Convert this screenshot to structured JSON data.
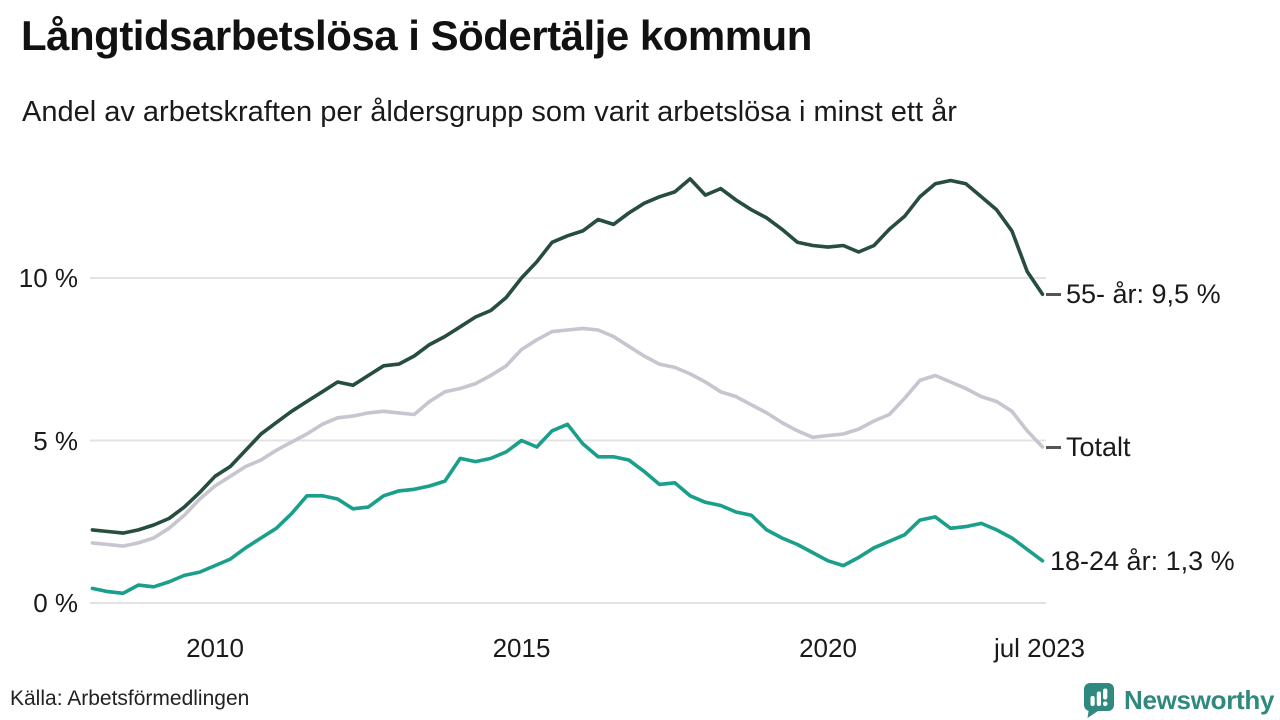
{
  "header": {
    "title": "Långtidsarbetslösa i Södertälje kommun",
    "subtitle": "Andel av arbetskraften per åldersgrupp som varit arbetslösa i minst ett år"
  },
  "footer": {
    "source": "Källa: Arbetsförmedlingen",
    "brand": "Newsworthy"
  },
  "colors": {
    "age55": "#264d3f",
    "total": "#c7c5cf",
    "age1824": "#1a9f8b",
    "grid": "#e3e3e3",
    "annotation_dash": "#555555",
    "brand": "#30897f",
    "text": "#1a1a1a"
  },
  "chart_data": {
    "type": "line",
    "title": "Långtidsarbetslösa i Södertälje kommun",
    "subtitle": "Andel av arbetskraften per åldersgrupp som varit arbetslösa i minst ett år",
    "source": "Källa: Arbetsförmedlingen",
    "xlabel": "",
    "ylabel": "",
    "grid": "horizontal",
    "legend_position": "right-edge-annotations",
    "x_unit": "year",
    "x_start": 2008.0,
    "x_step": 0.25,
    "xlim": [
      2008.0,
      2023.58
    ],
    "ylim": [
      0,
      13.3
    ],
    "y_ticks": [
      {
        "value": 0,
        "label": "0 %"
      },
      {
        "value": 5,
        "label": "5 %"
      },
      {
        "value": 10,
        "label": "10 %"
      }
    ],
    "x_ticks": [
      {
        "value": 2010,
        "label": "2010"
      },
      {
        "value": 2015,
        "label": "2015"
      },
      {
        "value": 2020,
        "label": "2020"
      },
      {
        "value": 2023.45,
        "label": "jul 2023"
      }
    ],
    "series": [
      {
        "name": "55- år",
        "color_key": "age55",
        "end_label": "55- år: 9,5 %",
        "end_value": 9.5,
        "dash": true,
        "z": 1,
        "values": [
          2.25,
          2.2,
          2.15,
          2.25,
          2.4,
          2.6,
          2.95,
          3.4,
          3.9,
          4.2,
          4.7,
          5.2,
          5.55,
          5.9,
          6.2,
          6.5,
          6.8,
          6.7,
          7.0,
          7.3,
          7.35,
          7.6,
          7.95,
          8.2,
          8.5,
          8.8,
          9.0,
          9.4,
          10.0,
          10.5,
          11.1,
          11.3,
          11.45,
          11.8,
          11.65,
          12.0,
          12.3,
          12.5,
          12.65,
          13.05,
          12.55,
          12.75,
          12.4,
          12.1,
          11.85,
          11.5,
          11.1,
          11.0,
          10.95,
          11.0,
          10.8,
          11.0,
          11.5,
          11.9,
          12.5,
          12.9,
          13.0,
          12.9,
          12.5,
          12.1,
          11.45,
          10.2,
          9.5
        ]
      },
      {
        "name": "Totalt",
        "color_key": "total",
        "end_label": "Totalt",
        "end_value": 4.8,
        "dash": true,
        "z": 0,
        "values": [
          1.85,
          1.8,
          1.75,
          1.85,
          2.0,
          2.3,
          2.7,
          3.2,
          3.6,
          3.9,
          4.2,
          4.4,
          4.7,
          4.95,
          5.2,
          5.5,
          5.7,
          5.75,
          5.85,
          5.9,
          5.85,
          5.8,
          6.2,
          6.5,
          6.6,
          6.75,
          7.0,
          7.3,
          7.8,
          8.1,
          8.35,
          8.4,
          8.45,
          8.4,
          8.2,
          7.9,
          7.6,
          7.35,
          7.25,
          7.05,
          6.8,
          6.5,
          6.35,
          6.1,
          5.85,
          5.55,
          5.3,
          5.1,
          5.15,
          5.2,
          5.35,
          5.6,
          5.8,
          6.3,
          6.85,
          7.0,
          6.8,
          6.6,
          6.35,
          6.2,
          5.9,
          5.3,
          4.8
        ]
      },
      {
        "name": "18-24 år",
        "color_key": "age1824",
        "end_label": "18-24 år: 1,3 %",
        "end_value": 1.3,
        "dash": false,
        "z": 2,
        "values": [
          0.45,
          0.35,
          0.3,
          0.55,
          0.5,
          0.65,
          0.85,
          0.95,
          1.15,
          1.35,
          1.7,
          2.0,
          2.3,
          2.75,
          3.3,
          3.3,
          3.2,
          2.9,
          2.95,
          3.3,
          3.45,
          3.5,
          3.6,
          3.75,
          4.45,
          4.35,
          4.45,
          4.65,
          5.0,
          4.8,
          5.3,
          5.5,
          4.9,
          4.5,
          4.5,
          4.4,
          4.05,
          3.65,
          3.7,
          3.3,
          3.1,
          3.0,
          2.8,
          2.7,
          2.25,
          2.0,
          1.8,
          1.55,
          1.3,
          1.15,
          1.4,
          1.7,
          1.9,
          2.1,
          2.55,
          2.65,
          2.3,
          2.35,
          2.45,
          2.25,
          2.0,
          1.65,
          1.3
        ]
      }
    ]
  }
}
